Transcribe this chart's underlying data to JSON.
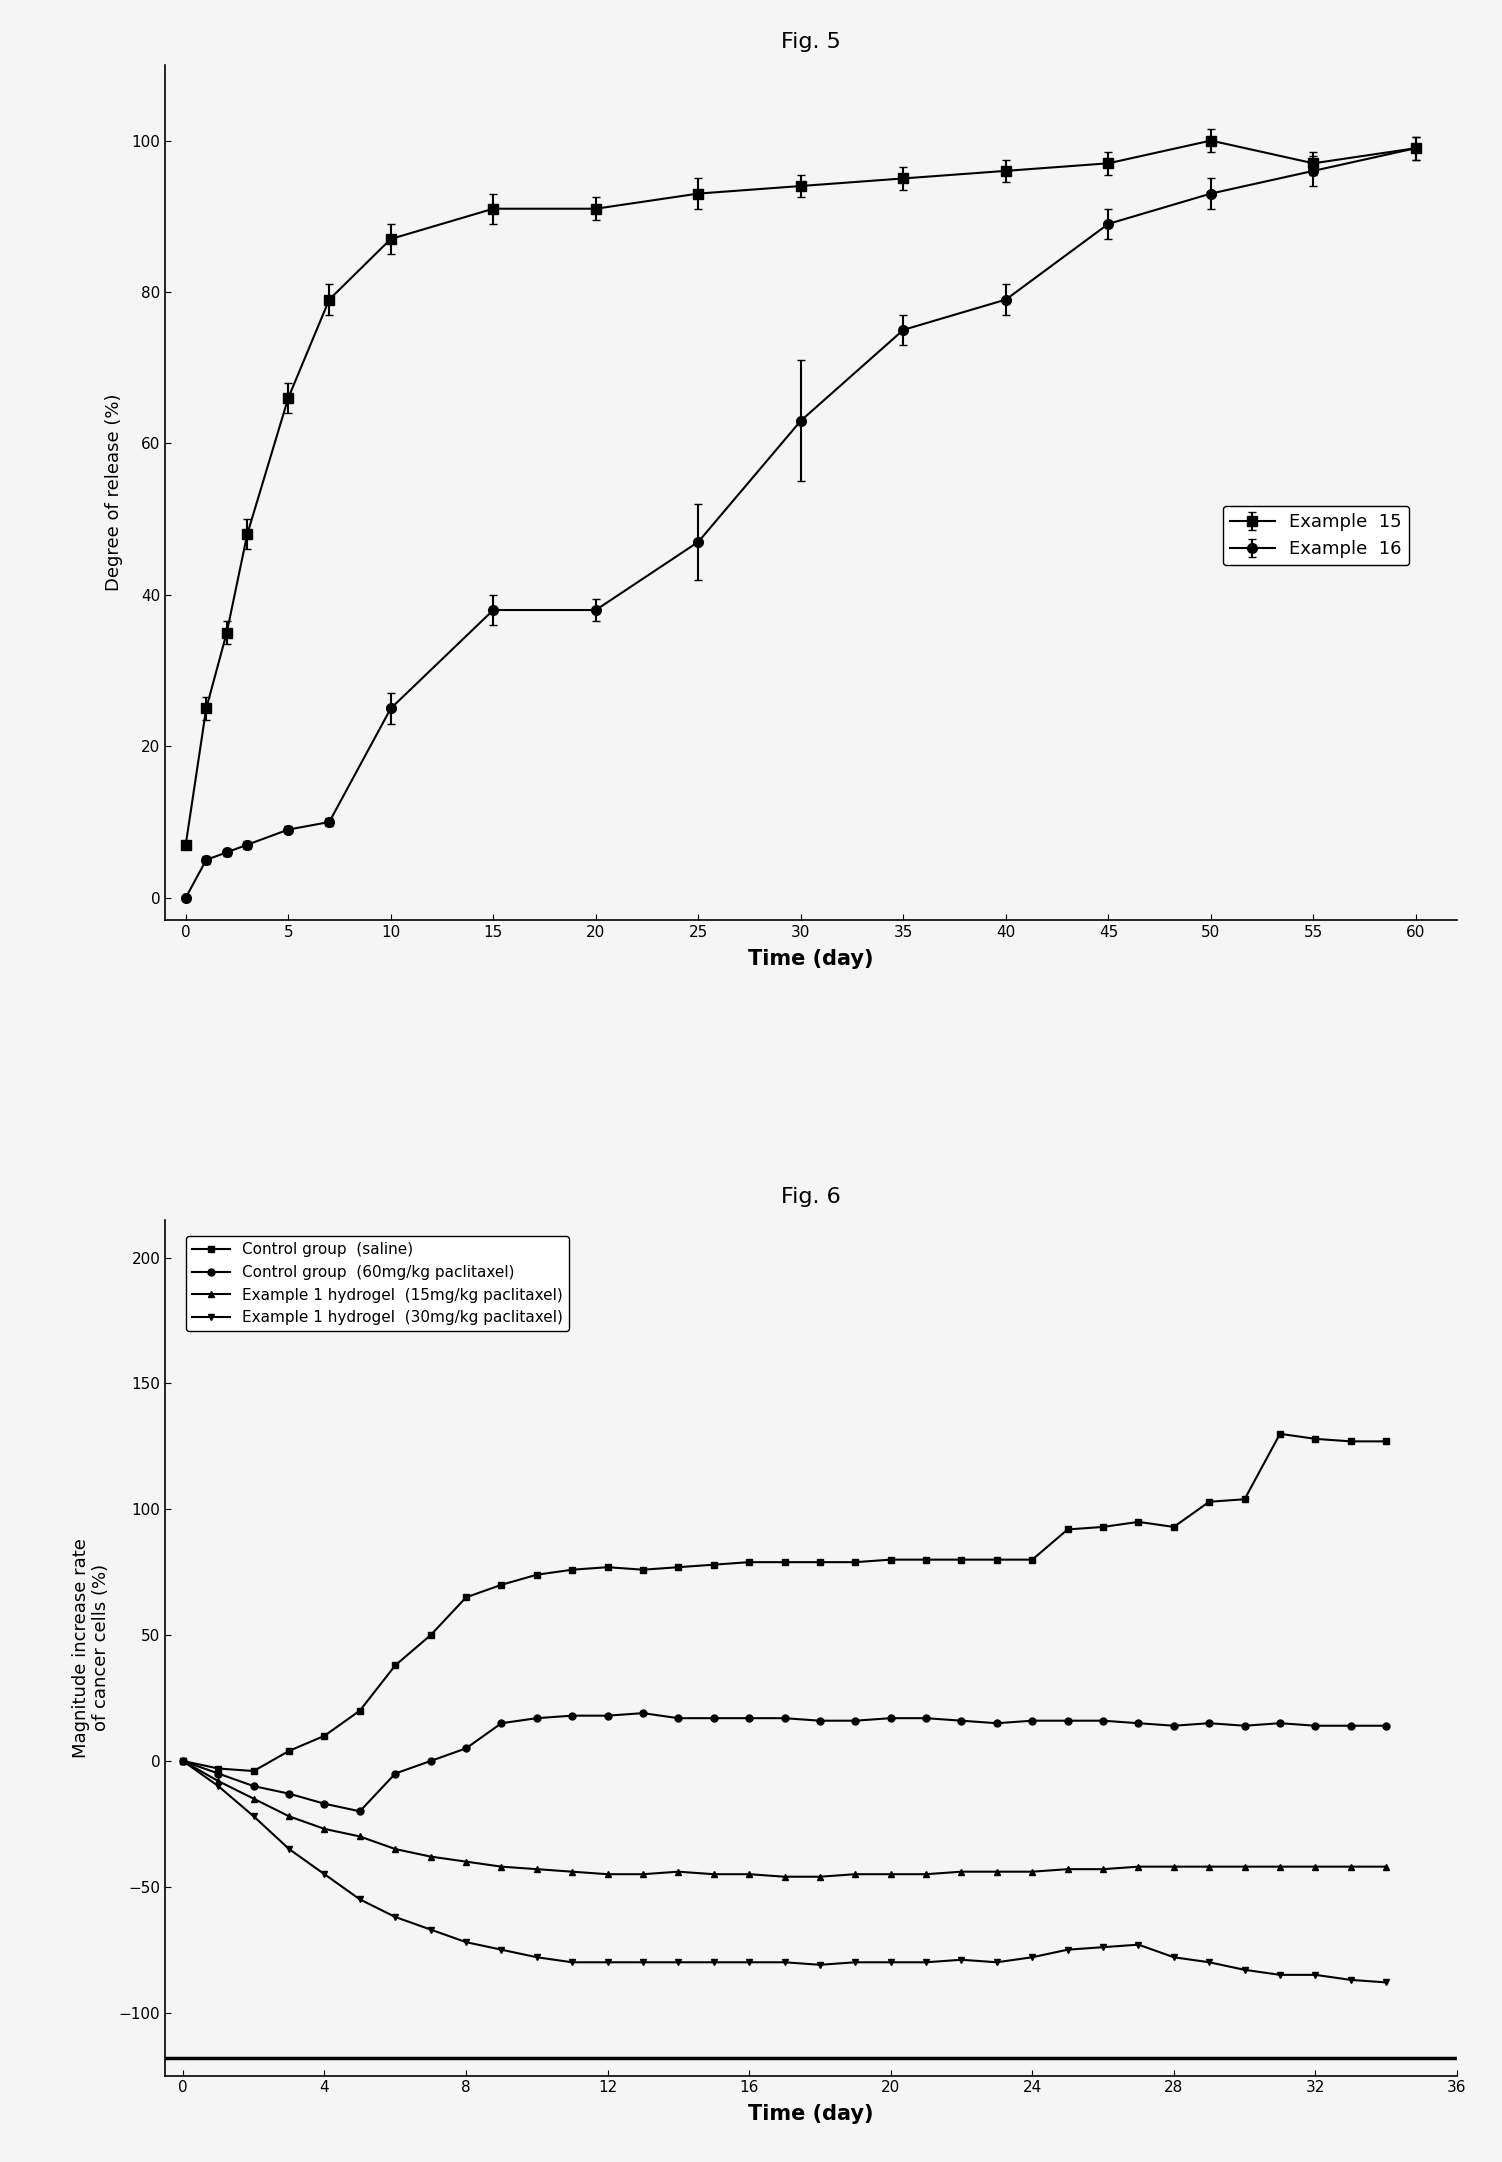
{
  "fig5_title": "Fig. 5",
  "fig6_title": "Fig. 6",
  "ex15_x": [
    0,
    1,
    2,
    3,
    5,
    7,
    10,
    15,
    20,
    25,
    30,
    35,
    40,
    45,
    50,
    55,
    60
  ],
  "ex15_y": [
    7,
    25,
    35,
    48,
    66,
    79,
    87,
    91,
    91,
    93,
    94,
    95,
    96,
    97,
    100,
    97,
    99
  ],
  "ex15_err": [
    0.5,
    1.5,
    1.5,
    2,
    2,
    2,
    2,
    2,
    1.5,
    2,
    1.5,
    1.5,
    1.5,
    1.5,
    1.5,
    1.5,
    1.5
  ],
  "ex16_x": [
    0,
    1,
    2,
    3,
    5,
    7,
    10,
    15,
    20,
    25,
    30,
    35,
    40,
    45,
    50,
    55,
    60
  ],
  "ex16_y": [
    0,
    5,
    6,
    7,
    9,
    10,
    25,
    38,
    38,
    47,
    63,
    75,
    79,
    89,
    93,
    96,
    99
  ],
  "ex16_err": [
    0.3,
    0.5,
    0.5,
    0.5,
    0.5,
    0.5,
    2,
    2,
    1.5,
    5,
    8,
    2,
    2,
    2,
    2,
    2,
    1.5
  ],
  "fig5_xlabel": "Time (day)",
  "fig5_ylabel": "Degree of release (%)",
  "fig5_xlim": [
    -1,
    62
  ],
  "fig5_ylim": [
    -3,
    110
  ],
  "fig5_xticks": [
    0,
    5,
    10,
    15,
    20,
    25,
    30,
    35,
    40,
    45,
    50,
    55,
    60
  ],
  "fig5_yticks": [
    0,
    20,
    40,
    60,
    80,
    100
  ],
  "ctrl_saline_x": [
    0,
    1,
    2,
    3,
    4,
    5,
    6,
    7,
    8,
    9,
    10,
    11,
    12,
    13,
    14,
    15,
    16,
    17,
    18,
    19,
    20,
    21,
    22,
    23,
    24,
    25,
    26,
    27,
    28,
    29,
    30,
    31,
    32,
    33,
    34
  ],
  "ctrl_saline_y": [
    0,
    -3,
    -4,
    4,
    10,
    20,
    38,
    50,
    65,
    70,
    74,
    76,
    77,
    76,
    77,
    78,
    79,
    79,
    79,
    79,
    80,
    80,
    80,
    80,
    80,
    92,
    93,
    95,
    93,
    103,
    104,
    130,
    128,
    127,
    127
  ],
  "ctrl_60_x": [
    0,
    1,
    2,
    3,
    4,
    5,
    6,
    7,
    8,
    9,
    10,
    11,
    12,
    13,
    14,
    15,
    16,
    17,
    18,
    19,
    20,
    21,
    22,
    23,
    24,
    25,
    26,
    27,
    28,
    29,
    30,
    31,
    32,
    33,
    34
  ],
  "ctrl_60_y": [
    0,
    -5,
    -10,
    -13,
    -17,
    -20,
    -5,
    0,
    5,
    15,
    17,
    18,
    18,
    19,
    17,
    17,
    17,
    17,
    16,
    16,
    17,
    17,
    16,
    15,
    16,
    16,
    16,
    15,
    14,
    15,
    14,
    15,
    14,
    14,
    14
  ],
  "ex1_15_x": [
    0,
    1,
    2,
    3,
    4,
    5,
    6,
    7,
    8,
    9,
    10,
    11,
    12,
    13,
    14,
    15,
    16,
    17,
    18,
    19,
    20,
    21,
    22,
    23,
    24,
    25,
    26,
    27,
    28,
    29,
    30,
    31,
    32,
    33,
    34
  ],
  "ex1_15_y": [
    0,
    -8,
    -15,
    -22,
    -27,
    -30,
    -35,
    -38,
    -40,
    -42,
    -43,
    -44,
    -45,
    -45,
    -44,
    -45,
    -45,
    -46,
    -46,
    -45,
    -45,
    -45,
    -44,
    -44,
    -44,
    -43,
    -43,
    -42,
    -42,
    -42,
    -42,
    -42,
    -42,
    -42,
    -42
  ],
  "ex1_30_x": [
    0,
    1,
    2,
    3,
    4,
    5,
    6,
    7,
    8,
    9,
    10,
    11,
    12,
    13,
    14,
    15,
    16,
    17,
    18,
    19,
    20,
    21,
    22,
    23,
    24,
    25,
    26,
    27,
    28,
    29,
    30,
    31,
    32,
    33,
    34
  ],
  "ex1_30_y": [
    0,
    -10,
    -22,
    -35,
    -45,
    -55,
    -62,
    -67,
    -72,
    -75,
    -78,
    -80,
    -80,
    -80,
    -80,
    -80,
    -80,
    -80,
    -81,
    -80,
    -80,
    -80,
    -79,
    -80,
    -78,
    -75,
    -74,
    -73,
    -78,
    -80,
    -83,
    -85,
    -85,
    -87,
    -88
  ],
  "fig6_xlabel": "Time (day)",
  "fig6_ylabel1": "Magnitude increase rate",
  "fig6_ylabel2": "of cancer cells (%)",
  "fig6_xlim": [
    -0.5,
    36
  ],
  "fig6_ylim": [
    -125,
    215
  ],
  "fig6_xticks": [
    0,
    4,
    8,
    12,
    16,
    20,
    24,
    28,
    32,
    36
  ],
  "fig6_yticks": [
    -100,
    -50,
    0,
    50,
    100,
    150,
    200
  ],
  "color_black": "#000000",
  "background": "#f5f5f5",
  "legend15_label": "Example  15",
  "legend16_label": "Example  16",
  "legend_saline": "Control group  (saline)",
  "legend_60": "Control group  (60mg/kg paclitaxel)",
  "legend_15": "Example 1 hydrogel  (15mg/kg paclitaxel)",
  "legend_30": "Example 1 hydrogel  (30mg/kg paclitaxel)"
}
